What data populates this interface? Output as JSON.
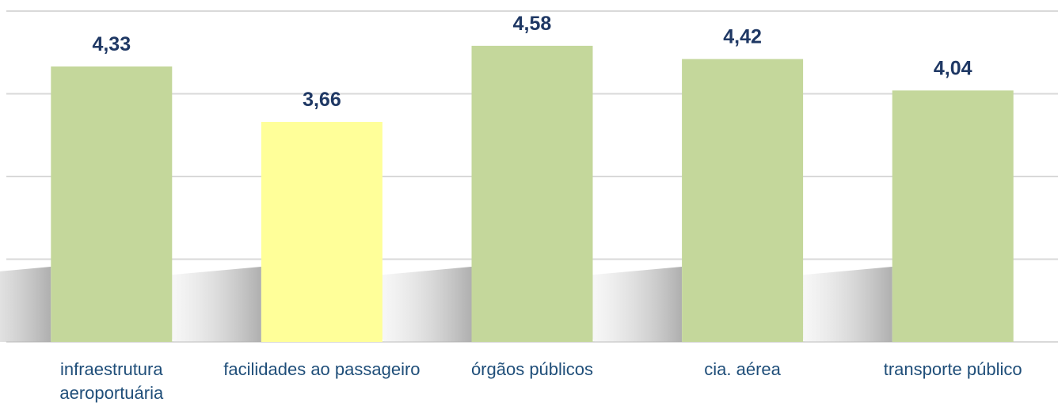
{
  "chart_data": {
    "type": "bar",
    "categories": [
      "infraestrutura aeroportuária",
      "facilidades ao passageiro",
      "órgãos públicos",
      "cia. aérea",
      "transporte público"
    ],
    "values": [
      4.33,
      3.66,
      4.58,
      4.42,
      4.04
    ],
    "value_labels": [
      "4,33",
      "3,66",
      "4,58",
      "4,42",
      "4,04"
    ],
    "colors": [
      "#c4d79b",
      "#ffff99",
      "#c4d79b",
      "#c4d79b",
      "#c4d79b"
    ],
    "ylim": [
      1,
      5
    ],
    "yticks": [
      1,
      2,
      3,
      4,
      5
    ],
    "grid": true
  }
}
